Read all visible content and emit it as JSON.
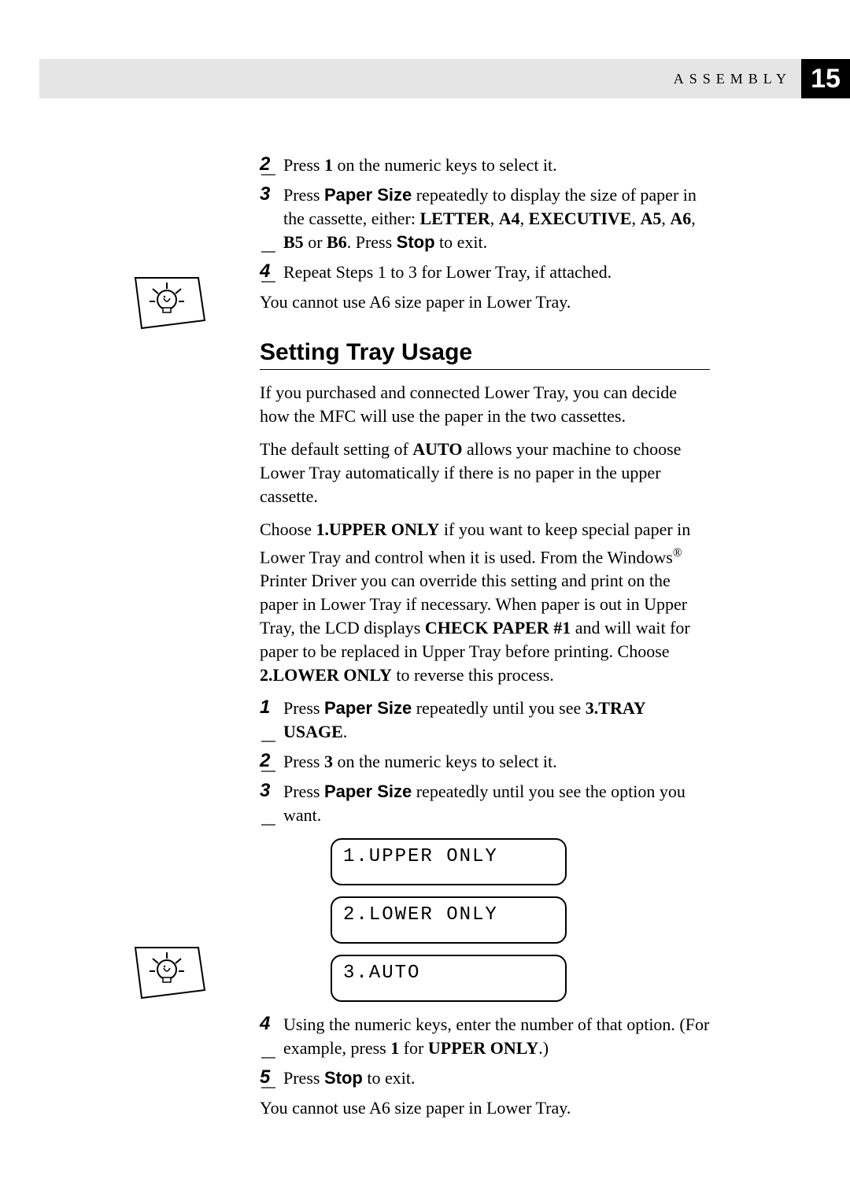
{
  "header": {
    "section_label": "ASSEMBLY",
    "page_number": "15"
  },
  "steps_top": [
    {
      "num": "2",
      "parts": [
        {
          "t": "Press ",
          "b": false
        },
        {
          "t": "1",
          "b": true
        },
        {
          "t": " on the numeric keys to select it.",
          "b": false
        }
      ]
    },
    {
      "num": "3",
      "parts": [
        {
          "t": "Press ",
          "b": false
        },
        {
          "t": "Paper Size",
          "b": true,
          "sans": true
        },
        {
          "t": " repeatedly to display the size of paper in the cassette, either: ",
          "b": false
        },
        {
          "t": "LETTER",
          "b": true
        },
        {
          "t": ", ",
          "b": false
        },
        {
          "t": "A4",
          "b": true
        },
        {
          "t": ", ",
          "b": false
        },
        {
          "t": "EXECUTIVE",
          "b": true
        },
        {
          "t": ", ",
          "b": false
        },
        {
          "t": "A5",
          "b": true
        },
        {
          "t": ", ",
          "b": false
        },
        {
          "t": "A6",
          "b": true
        },
        {
          "t": ", ",
          "b": false
        },
        {
          "t": "B5",
          "b": true
        },
        {
          "t": " or ",
          "b": false
        },
        {
          "t": "B6",
          "b": true
        },
        {
          "t": ". Press ",
          "b": false
        },
        {
          "t": "Stop",
          "b": true,
          "sans": true
        },
        {
          "t": " to exit.",
          "b": false
        }
      ]
    },
    {
      "num": "4",
      "parts": [
        {
          "t": "Repeat Steps 1 to 3 for Lower Tray, if attached.",
          "b": false
        }
      ]
    }
  ],
  "note_top": "You cannot use A6 size paper in Lower Tray.",
  "section_title": "Setting Tray Usage",
  "body_paras": [
    [
      {
        "t": "If you purchased and connected Lower Tray, you can decide how the MFC will use the paper in the two cassettes.",
        "b": false
      }
    ],
    [
      {
        "t": "The default setting of ",
        "b": false
      },
      {
        "t": "AUTO",
        "b": true
      },
      {
        "t": " allows your machine to choose Lower Tray automatically if there is no paper in the upper cassette.",
        "b": false
      }
    ],
    [
      {
        "t": "Choose ",
        "b": false
      },
      {
        "t": "1.UPPER ONLY",
        "b": true
      },
      {
        "t": " if you want to keep special paper in Lower Tray and control when it is used. From the Windows",
        "b": false
      },
      {
        "t": "®",
        "b": false,
        "sup": true
      },
      {
        "t": " Printer Driver you can override this setting and print on the paper in Lower Tray if necessary. When paper is out in Upper Tray, the LCD displays ",
        "b": false
      },
      {
        "t": "CHECK PAPER #1",
        "b": true
      },
      {
        "t": " and will wait for paper to be replaced in Upper Tray before printing. Choose ",
        "b": false
      },
      {
        "t": "2.LOWER ONLY",
        "b": true
      },
      {
        "t": " to reverse this process.",
        "b": false
      }
    ]
  ],
  "steps_mid": [
    {
      "num": "1",
      "parts": [
        {
          "t": "Press ",
          "b": false
        },
        {
          "t": "Paper Size",
          "b": true,
          "sans": true
        },
        {
          "t": " repeatedly until you see ",
          "b": false
        },
        {
          "t": "3.TRAY USAGE",
          "b": true
        },
        {
          "t": ".",
          "b": false
        }
      ]
    },
    {
      "num": "2",
      "parts": [
        {
          "t": "Press ",
          "b": false
        },
        {
          "t": "3",
          "b": true
        },
        {
          "t": " on the numeric keys to select it.",
          "b": false
        }
      ]
    },
    {
      "num": "3",
      "parts": [
        {
          "t": "Press ",
          "b": false
        },
        {
          "t": "Paper Size",
          "b": true,
          "sans": true
        },
        {
          "t": " repeatedly until you see the option you want.",
          "b": false
        }
      ]
    }
  ],
  "lcd": [
    "1.UPPER ONLY",
    "2.LOWER ONLY",
    "3.AUTO"
  ],
  "steps_bottom": [
    {
      "num": "4",
      "parts": [
        {
          "t": "Using the numeric keys, enter the number of that option. (For example, press ",
          "b": false
        },
        {
          "t": "1",
          "b": true
        },
        {
          "t": " for ",
          "b": false
        },
        {
          "t": "UPPER ONLY",
          "b": true
        },
        {
          "t": ".)",
          "b": false
        }
      ]
    },
    {
      "num": "5",
      "parts": [
        {
          "t": "Press ",
          "b": false
        },
        {
          "t": "Stop",
          "b": true,
          "sans": true
        },
        {
          "t": " to exit.",
          "b": false
        }
      ]
    }
  ],
  "note_bottom": "You cannot use A6 size paper in Lower Tray.",
  "colors": {
    "header_bg": "#e5e5e5",
    "pagebox_bg": "#000000",
    "pagebox_fg": "#ffffff",
    "text": "#000000"
  },
  "tip_positions": {
    "top1": 345,
    "top2": 1196
  }
}
